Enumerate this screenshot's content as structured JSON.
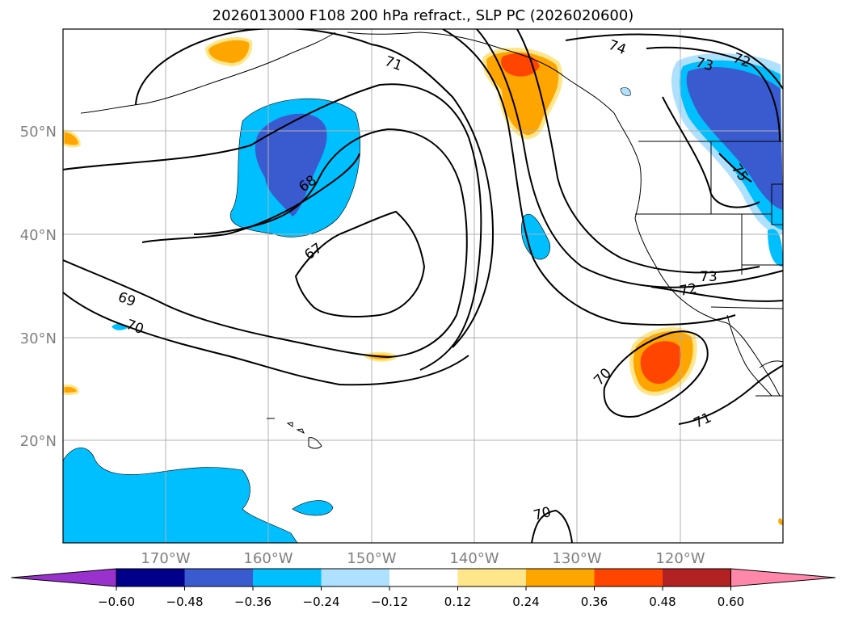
{
  "title": "2026013000 F108 200 hPa refract., SLP PC (2026020600)",
  "lat_labels": [
    "50°N",
    "40°N",
    "30°N",
    "20°N"
  ],
  "lon_labels": [
    "170°W",
    "160°W",
    "150°W",
    "140°W",
    "130°W",
    "120°W"
  ],
  "contour_labels": [
    "71",
    "74",
    "73",
    "72",
    "68",
    "67",
    "69",
    "70",
    "75",
    "73",
    "72",
    "70",
    "71",
    "70"
  ],
  "colorbar": {
    "ticks": [
      "−0.60",
      "−0.48",
      "−0.36",
      "−0.24",
      "−0.12",
      "0.12",
      "0.24",
      "0.36",
      "0.48",
      "0.60"
    ],
    "colors": [
      "#9932cc",
      "#00008b",
      "#3a5bd0",
      "#00bfff",
      "#aee0ff",
      "#ffffff",
      "#ffe68a",
      "#ffa500",
      "#ff4500",
      "#b22222",
      "#ff88aa"
    ]
  },
  "colors": {
    "neg_strong": "#3a5bd0",
    "neg_mid": "#00bfff",
    "neg_weak": "#aee0ff",
    "pos_weak": "#ffe68a",
    "pos_mid": "#ffa500",
    "pos_strong": "#ff4500",
    "contour": "#000000",
    "grid": "#b0b0b0",
    "tick_label": "#808080"
  }
}
